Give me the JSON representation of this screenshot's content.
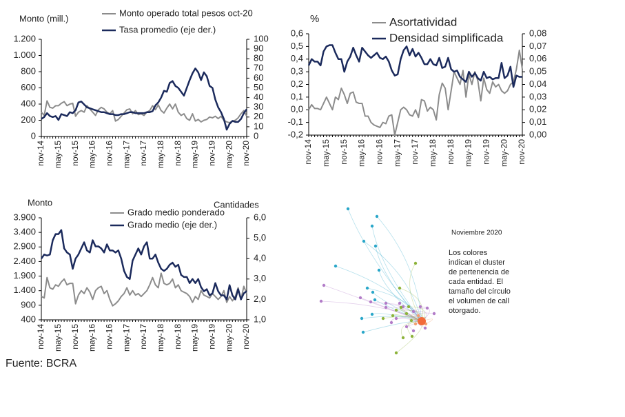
{
  "chart_data": [
    {
      "type": "line",
      "ylabel": "Monto (mill.)",
      "categories": [
        "nov-14",
        null,
        null,
        null,
        null,
        null,
        "may-15",
        null,
        null,
        null,
        null,
        null,
        "nov-15",
        null,
        null,
        null,
        null,
        null,
        "may-16",
        null,
        null,
        null,
        null,
        null,
        "nov-16",
        null,
        null,
        null,
        null,
        null,
        "may-17",
        null,
        null,
        null,
        null,
        null,
        "nov-17",
        null,
        null,
        null,
        null,
        null,
        "may-18",
        null,
        null,
        null,
        null,
        null,
        "nov-18",
        null,
        null,
        null,
        null,
        null,
        "may-19",
        null,
        null,
        null,
        null,
        null,
        "nov-19",
        null,
        null,
        null,
        null,
        null,
        "may-20",
        null,
        null,
        null,
        null,
        null,
        "nov-20"
      ],
      "series": [
        {
          "name": "Monto operado total pesos oct-20",
          "color": "#8c8c8c",
          "values": [
            300,
            260,
            440,
            360,
            350,
            380,
            380,
            410,
            430,
            380,
            400,
            410,
            250,
            300,
            320,
            300,
            380,
            340,
            300,
            260,
            330,
            360,
            340,
            300,
            280,
            320,
            190,
            210,
            250,
            290,
            330,
            340,
            280,
            320,
            270,
            280,
            260,
            300,
            320,
            380,
            330,
            390,
            320,
            290,
            350,
            400,
            340,
            400,
            300,
            260,
            280,
            220,
            200,
            280,
            190,
            210,
            180,
            200,
            210,
            240,
            230,
            250,
            220,
            250,
            200,
            180,
            170,
            190,
            200,
            230,
            280,
            320,
            250
          ]
        },
        {
          "name": "Tasa promedio (eje der.)",
          "color": "#1b2a5c",
          "axis": "y2",
          "values": [
            18,
            20,
            24,
            21,
            20,
            21,
            17,
            23,
            22,
            21,
            25,
            24,
            27,
            35,
            36,
            33,
            30,
            29,
            28,
            27,
            26,
            25,
            25,
            24,
            23,
            23,
            22,
            22,
            23,
            23,
            24,
            25,
            25,
            24,
            24,
            24,
            24,
            25,
            25,
            26,
            32,
            35,
            40,
            47,
            46,
            55,
            57,
            52,
            50,
            46,
            42,
            50,
            58,
            65,
            70,
            66,
            58,
            66,
            62,
            52,
            50,
            38,
            30,
            25,
            18,
            7,
            13,
            16,
            15,
            15,
            18,
            24,
            28
          ]
        }
      ],
      "ylim": [
        0,
        1200
      ],
      "yticks": [
        0,
        200,
        400,
        600,
        800,
        {
          "value": 1000,
          "label": "1.000"
        },
        {
          "value": 1200,
          "label": "1.200"
        }
      ],
      "y2lim": [
        0,
        100
      ],
      "y2ticks": [
        0,
        10,
        20,
        30,
        40,
        50,
        60,
        70,
        80,
        90,
        100
      ]
    },
    {
      "type": "line",
      "ylabel": "%",
      "categories": [
        "nov-14",
        null,
        null,
        null,
        null,
        null,
        "may-15",
        null,
        null,
        null,
        null,
        null,
        "nov-15",
        null,
        null,
        null,
        null,
        null,
        "may-16",
        null,
        null,
        null,
        null,
        null,
        "nov-16",
        null,
        null,
        null,
        null,
        null,
        "may-17",
        null,
        null,
        null,
        null,
        null,
        "nov-17",
        null,
        null,
        null,
        null,
        null,
        "may-18",
        null,
        null,
        null,
        null,
        null,
        "nov-18",
        null,
        null,
        null,
        null,
        null,
        "may-19",
        null,
        null,
        null,
        null,
        null,
        "nov-19",
        null,
        null,
        null,
        null,
        null,
        "may-20",
        null,
        null,
        null,
        null,
        null,
        "nov-20"
      ],
      "series": [
        {
          "name": "Asortatividad",
          "color": "#8c8c8c",
          "values": [
            0.0,
            0.04,
            0.01,
            0.01,
            0.0,
            0.05,
            0.1,
            0.05,
            0.0,
            0.1,
            0.08,
            0.17,
            0.12,
            0.05,
            0.13,
            0.14,
            0.06,
            0.05,
            0.05,
            -0.05,
            -0.05,
            -0.1,
            -0.12,
            -0.13,
            -0.14,
            -0.1,
            -0.11,
            -0.05,
            -0.04,
            -0.2,
            -0.1,
            0.0,
            0.02,
            0.0,
            -0.04,
            -0.05,
            0.0,
            -0.06,
            0.08,
            0.07,
            -0.01,
            0.02,
            0.0,
            -0.08,
            0.12,
            0.21,
            0.17,
            0.0,
            0.15,
            0.3,
            0.25,
            0.2,
            0.31,
            0.1,
            0.28,
            0.2,
            0.3,
            0.23,
            0.07,
            0.25,
            0.16,
            0.13,
            0.22,
            0.18,
            0.2,
            0.15,
            0.13,
            0.15,
            0.2,
            0.22,
            0.32,
            0.47,
            0.32
          ]
        },
        {
          "name": "Densidad simplificada",
          "color": "#1b2a5c",
          "axis": "y2",
          "values": [
            0.055,
            0.06,
            0.058,
            0.058,
            0.055,
            0.066,
            0.07,
            0.071,
            0.071,
            0.065,
            0.06,
            0.06,
            0.05,
            0.058,
            0.062,
            0.069,
            0.063,
            0.058,
            0.069,
            0.066,
            0.063,
            0.061,
            0.063,
            0.065,
            0.061,
            0.06,
            0.062,
            0.058,
            0.051,
            0.047,
            0.048,
            0.06,
            0.067,
            0.07,
            0.063,
            0.068,
            0.062,
            0.065,
            0.061,
            0.056,
            0.056,
            0.06,
            0.056,
            0.055,
            0.061,
            0.053,
            0.054,
            0.061,
            0.052,
            0.05,
            0.051,
            0.046,
            0.044,
            0.042,
            0.05,
            0.046,
            0.049,
            0.045,
            0.043,
            0.05,
            0.045,
            0.046,
            0.044,
            0.045,
            0.045,
            0.057,
            0.045,
            0.047,
            0.054,
            0.038,
            0.047,
            0.046,
            0.046
          ]
        }
      ],
      "ylim": [
        -0.2,
        0.6
      ],
      "yticks": [
        {
          "value": -0.2,
          "label": "-0,2"
        },
        {
          "value": -0.1,
          "label": "-0,1"
        },
        {
          "value": 0,
          "label": "0,0"
        },
        {
          "value": 0.1,
          "label": "0,1"
        },
        {
          "value": 0.2,
          "label": "0,2"
        },
        {
          "value": 0.3,
          "label": "0,3"
        },
        {
          "value": 0.4,
          "label": "0,4"
        },
        {
          "value": 0.5,
          "label": "0,5"
        },
        {
          "value": 0.6,
          "label": "0,6"
        }
      ],
      "y2lim": [
        0,
        0.08
      ],
      "y2ticks": [
        {
          "value": 0,
          "label": "0,00"
        },
        {
          "value": 0.01,
          "label": "0,01"
        },
        {
          "value": 0.02,
          "label": "0,02"
        },
        {
          "value": 0.03,
          "label": "0,03"
        },
        {
          "value": 0.04,
          "label": "0,04"
        },
        {
          "value": 0.05,
          "label": "0,05"
        },
        {
          "value": 0.06,
          "label": "0,06"
        },
        {
          "value": 0.07,
          "label": "0,07"
        },
        {
          "value": 0.08,
          "label": "0,08"
        }
      ]
    },
    {
      "type": "line",
      "ylabel": "Monto",
      "y2label": "Cantidades",
      "categories": [
        "nov-14",
        null,
        null,
        null,
        null,
        null,
        "may-15",
        null,
        null,
        null,
        null,
        null,
        "nov-15",
        null,
        null,
        null,
        null,
        null,
        "may-16",
        null,
        null,
        null,
        null,
        null,
        "nov-16",
        null,
        null,
        null,
        null,
        null,
        "may-17",
        null,
        null,
        null,
        null,
        null,
        "nov-17",
        null,
        null,
        null,
        null,
        null,
        "may-18",
        null,
        null,
        null,
        null,
        null,
        "nov-18",
        null,
        null,
        null,
        null,
        null,
        "may-19",
        null,
        null,
        null,
        null,
        null,
        "nov-19",
        null,
        null,
        null,
        null,
        null,
        "may-20",
        null,
        null,
        null,
        null,
        null,
        "nov-20"
      ],
      "series": [
        {
          "name": "Grado medio ponderado",
          "color": "#8c8c8c",
          "values": [
            1200,
            1150,
            1850,
            1500,
            1450,
            1600,
            1550,
            1700,
            1800,
            1600,
            1650,
            1650,
            950,
            1250,
            1400,
            1300,
            1500,
            1350,
            1100,
            1400,
            1500,
            1550,
            1300,
            1400,
            1100,
            880,
            950,
            1050,
            1200,
            1300,
            1500,
            1250,
            1400,
            1250,
            1300,
            1200,
            1300,
            1400,
            1600,
            1850,
            1600,
            1500,
            2000,
            1650,
            1600,
            1650,
            1800,
            1500,
            1600,
            1400,
            1350,
            1300,
            1200,
            1000,
            1200,
            1100,
            1400,
            1250,
            1200,
            1150,
            1300,
            1200,
            1100,
            1200,
            1400,
            1000,
            1200,
            1050,
            1200,
            1500,
            1100,
            1550,
            1300
          ]
        },
        {
          "name": "Grado medio (eje der.)",
          "color": "#1b2a5c",
          "axis": "y2",
          "values": [
            4.0,
            4.2,
            4.15,
            4.2,
            4.9,
            5.2,
            5.2,
            5.4,
            4.5,
            4.3,
            4.2,
            3.5,
            4.0,
            4.2,
            4.5,
            4.8,
            4.4,
            4.3,
            4.9,
            4.6,
            4.6,
            4.5,
            4.3,
            4.7,
            4.4,
            4.4,
            4.3,
            4.4,
            4.0,
            3.4,
            3.1,
            3.0,
            3.9,
            4.2,
            4.5,
            4.2,
            4.6,
            4.8,
            4.0,
            4.0,
            4.2,
            3.8,
            3.5,
            3.4,
            3.5,
            3.7,
            3.8,
            3.6,
            3.7,
            3.2,
            3.1,
            3.1,
            2.8,
            3.0,
            2.8,
            3.0,
            2.6,
            2.4,
            2.5,
            2.2,
            2.3,
            2.8,
            2.4,
            2.2,
            2.2,
            2.0,
            2.7,
            2.2,
            2.0,
            2.5,
            2.0,
            2.3,
            2.4
          ]
        }
      ],
      "ylim": [
        400,
        3900
      ],
      "yticks": [
        400,
        900,
        {
          "value": 1400,
          "label": "1.400"
        },
        {
          "value": 1900,
          "label": "1.900"
        },
        {
          "value": 2400,
          "label": "2.400"
        },
        {
          "value": 2900,
          "label": "2.900"
        },
        {
          "value": 3400,
          "label": "3.400"
        },
        {
          "value": 3900,
          "label": "3.900"
        }
      ],
      "y2lim": [
        1,
        6
      ],
      "y2ticks": [
        {
          "value": 1,
          "label": "1,0"
        },
        {
          "value": 2,
          "label": "2,0"
        },
        {
          "value": 3,
          "label": "3,0"
        },
        {
          "value": 4,
          "label": "4,0"
        },
        {
          "value": 5,
          "label": "5,0"
        },
        {
          "value": 6,
          "label": "6,0"
        }
      ]
    }
  ],
  "network": {
    "title": "Noviembre 2020",
    "note": [
      "Los colores",
      "indican el cluster",
      "de pertenencia de",
      "cada entidad. El",
      "tamaño del círculo",
      "el volumen de call",
      "otorgado."
    ]
  },
  "source": "Fuente: BCRA"
}
